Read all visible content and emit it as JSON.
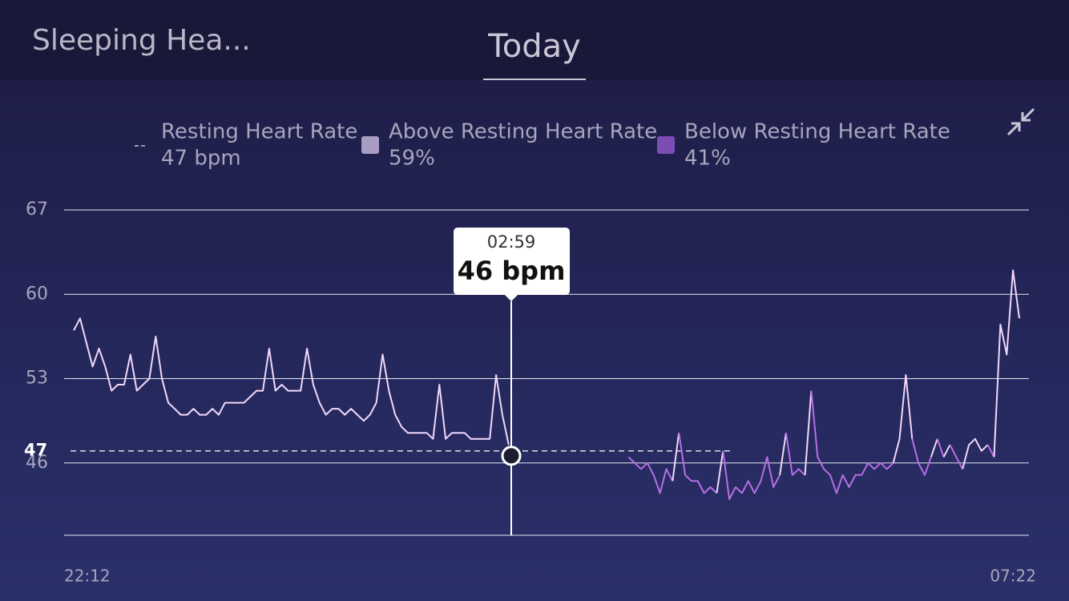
{
  "header": {
    "title": "Sleeping Hea...",
    "tab": "Today"
  },
  "chart_data": {
    "type": "line",
    "resting": {
      "label": "Resting Heart Rate",
      "value": 47,
      "value_label": "47 bpm"
    },
    "legend": [
      {
        "name": "Above Resting Heart Rate",
        "color": "#a99cc2",
        "line_color": "#f0d8fb",
        "value": 59,
        "value_label": "59%"
      },
      {
        "name": "Below Resting Heart Rate",
        "color": "#7d4cb5",
        "line_color": "#b86ee6",
        "value": 41,
        "value_label": "41%"
      }
    ],
    "ylim": [
      40,
      67
    ],
    "yticks": [
      46,
      53,
      60,
      67
    ],
    "grid": true,
    "xlabels": [
      "22:12",
      "07:22"
    ],
    "tooltip": {
      "x": "02:59",
      "value": 46,
      "value_label": "46 bpm"
    },
    "values": [
      57,
      58,
      56,
      54,
      55.5,
      54,
      52,
      52.5,
      52.5,
      55,
      52,
      52.5,
      53,
      56.5,
      53,
      51,
      50.5,
      50,
      50,
      50.5,
      50,
      50,
      50.5,
      50,
      51,
      51,
      51,
      51,
      51.5,
      52,
      52,
      55.5,
      52,
      52.5,
      52,
      52,
      52,
      55.5,
      52.5,
      51,
      50,
      50.5,
      50.5,
      50,
      50.5,
      50,
      49.5,
      50,
      51,
      55,
      52,
      50,
      49,
      48.5,
      48.5,
      48.5,
      48.5,
      48,
      52.5,
      48,
      48.5,
      48.5,
      48.5,
      48,
      48,
      48,
      48,
      53.3,
      50,
      47.5,
      null,
      null,
      null,
      null,
      null,
      null,
      null,
      null,
      null,
      null,
      null,
      null,
      null,
      null,
      null,
      null,
      null,
      null,
      46.5,
      46,
      45.5,
      46,
      45,
      43.5,
      45.5,
      44.5,
      48.5,
      45,
      44.5,
      44.5,
      43.5,
      44,
      43.5,
      47,
      43,
      44,
      43.5,
      44.5,
      43.5,
      44.5,
      46.5,
      44,
      45,
      48.5,
      45,
      45.5,
      45,
      52,
      46.5,
      45.5,
      45,
      43.5,
      45,
      44,
      45,
      45,
      46,
      45.5,
      46,
      45.5,
      46,
      48,
      53.3,
      48,
      46,
      45,
      46.5,
      48,
      46.5,
      47.5,
      46.5,
      45.5,
      47.5,
      48,
      47,
      47.5,
      46.5,
      57.5,
      55,
      62,
      58
    ]
  }
}
